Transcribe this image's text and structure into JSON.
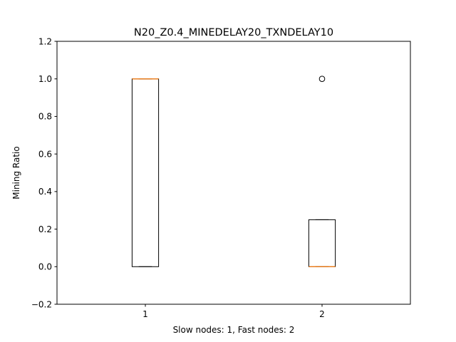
{
  "chart_data": {
    "type": "boxplot",
    "title": "N20_Z0.4_MINEDELAY20_TXNDELAY10",
    "xlabel": "Slow nodes: 1, Fast nodes: 2",
    "ylabel": "Mining Ratio",
    "ylim": [
      -0.2,
      1.2
    ],
    "xlim": [
      0.5,
      2.5
    ],
    "yticks": [
      -0.2,
      0.0,
      0.2,
      0.4,
      0.6,
      0.8,
      1.0,
      1.2
    ],
    "ytick_labels": [
      "−0.2",
      "0.0",
      "0.2",
      "0.4",
      "0.6",
      "0.8",
      "1.0",
      "1.2"
    ],
    "categories": [
      "1",
      "2"
    ],
    "boxes": [
      {
        "position": 1,
        "whisker_low": 0.0,
        "q1": 0.0,
        "median": 1.0,
        "q3": 1.0,
        "whisker_high": 1.0,
        "fliers": []
      },
      {
        "position": 2,
        "whisker_low": 0.0,
        "q1": 0.0,
        "median": 0.0,
        "q3": 0.25,
        "whisker_high": 0.25,
        "fliers": [
          1.0
        ]
      }
    ],
    "grid": false,
    "colors": {
      "box": "#000000",
      "median": "#ff7f0e",
      "flier": "#000000"
    }
  }
}
